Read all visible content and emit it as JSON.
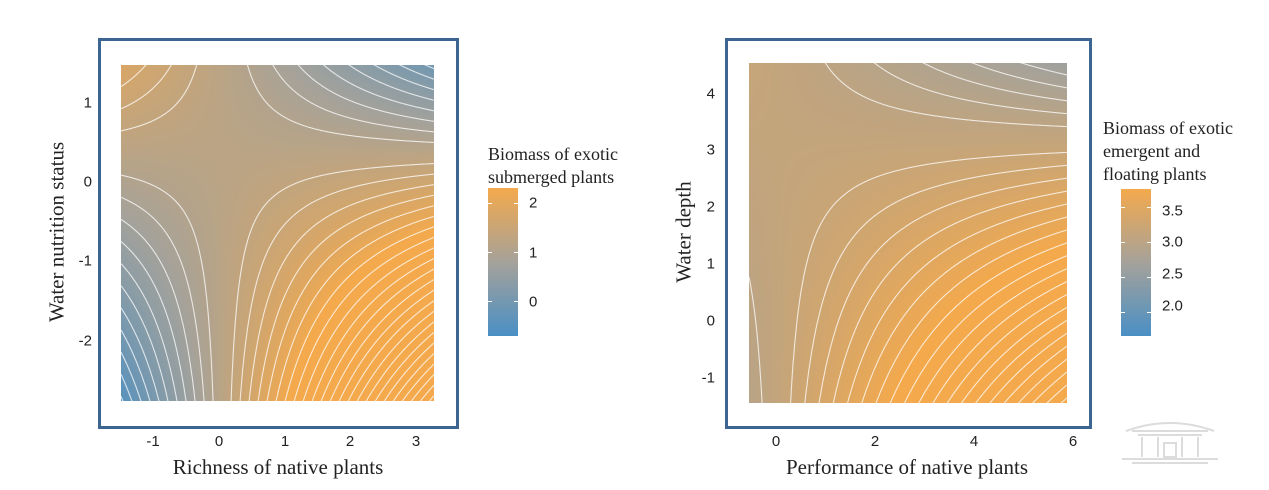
{
  "chart_data": [
    {
      "type": "heatmap",
      "subtype": "response-surface with contour lines",
      "xlabel": "Richness of native plants",
      "ylabel": "Water nutrition status",
      "xlim": [
        -1.55,
        3.25
      ],
      "ylim": [
        -2.75,
        1.45
      ],
      "x_ticks": [
        -1,
        0,
        1,
        2,
        3
      ],
      "y_ticks": [
        -2,
        -1,
        0,
        1
      ],
      "x_tick_labels": [
        "-1",
        "0",
        "1",
        "2",
        "3"
      ],
      "y_tick_labels": [
        "-2",
        "-1",
        "0",
        "1"
      ],
      "legend": {
        "title_lines": [
          "Biomass of exotic",
          "submerged plants"
        ],
        "min": -0.7,
        "max": 2.3,
        "ticks": [
          0,
          1,
          2
        ],
        "tick_labels": [
          "0",
          "1",
          "2"
        ]
      },
      "surface": {
        "center": [
          0.0,
          0.35
        ],
        "base": 1.2,
        "interaction": -0.35
      },
      "contour_step": 0.15
    },
    {
      "type": "heatmap",
      "subtype": "response-surface with contour lines",
      "xlabel": "Performance of native plants",
      "ylabel": "Water depth",
      "xlim": [
        -0.55,
        5.85
      ],
      "ylim": [
        -1.45,
        4.55
      ],
      "x_ticks": [
        0,
        2,
        4,
        6
      ],
      "y_ticks": [
        -1,
        0,
        1,
        2,
        3,
        4
      ],
      "x_tick_labels": [
        "0",
        "2",
        "4",
        "6"
      ],
      "y_tick_labels": [
        "-1",
        "0",
        "1",
        "2",
        "3",
        "4"
      ],
      "legend": {
        "title_lines": [
          "Biomass of exotic",
          "emergent and",
          "floating plants"
        ],
        "min": 1.65,
        "max": 3.75,
        "ticks": [
          2.0,
          2.5,
          3.0,
          3.5
        ],
        "tick_labels": [
          "2.0",
          "2.5",
          "3.0",
          "3.5"
        ]
      },
      "surface": {
        "center": [
          0.0,
          3.2
        ],
        "base": 3.1,
        "interaction": -0.06
      },
      "contour_step": 0.08
    }
  ],
  "colors": {
    "frame": "#3c6591",
    "low": "#4a8fc4",
    "mid": "#a5a29a",
    "high": "#f4a94c",
    "contour": "#ffffff"
  }
}
